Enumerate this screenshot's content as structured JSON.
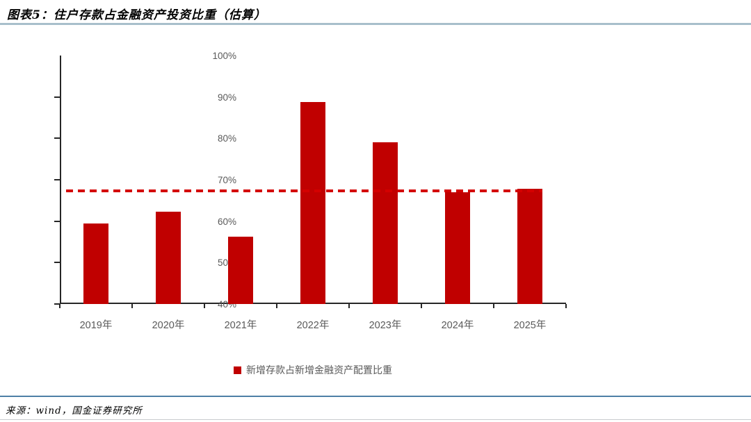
{
  "title": "图表5：住户存款占金融资产投资比重（估算）",
  "source": "来源：wind，国金证券研究所",
  "legend": {
    "label": "新增存款占新增金融资产配置比重"
  },
  "colors": {
    "bar": "#C00000",
    "dashed_line": "#D40000",
    "axis_line": "#262626",
    "axis_label": "#595959",
    "title_rule": "#A8BFCB",
    "source_rule": "#4E7FA6",
    "bottom_rule": "#C9CCCE"
  },
  "chart_data": {
    "type": "bar",
    "title": "图表5：住户存款占金融资产投资比重（估算）",
    "categories": [
      "2019年",
      "2020年",
      "2021年",
      "2022年",
      "2023年",
      "2024年",
      "2025年"
    ],
    "series": [
      {
        "name": "新增存款占新增金融资产配置比重",
        "values": [
          59.5,
          62.3,
          56.2,
          88.8,
          79.0,
          67.0,
          67.8
        ]
      }
    ],
    "reference_line": {
      "value": 67.4,
      "style": "dashed"
    },
    "ylim": [
      40,
      100
    ],
    "ytick_step": 10,
    "ytick_labels": [
      "40%",
      "50%",
      "60%",
      "70%",
      "80%",
      "90%",
      "100%"
    ],
    "xlabel": "",
    "ylabel": "",
    "grid": false,
    "legend_position": "bottom"
  }
}
